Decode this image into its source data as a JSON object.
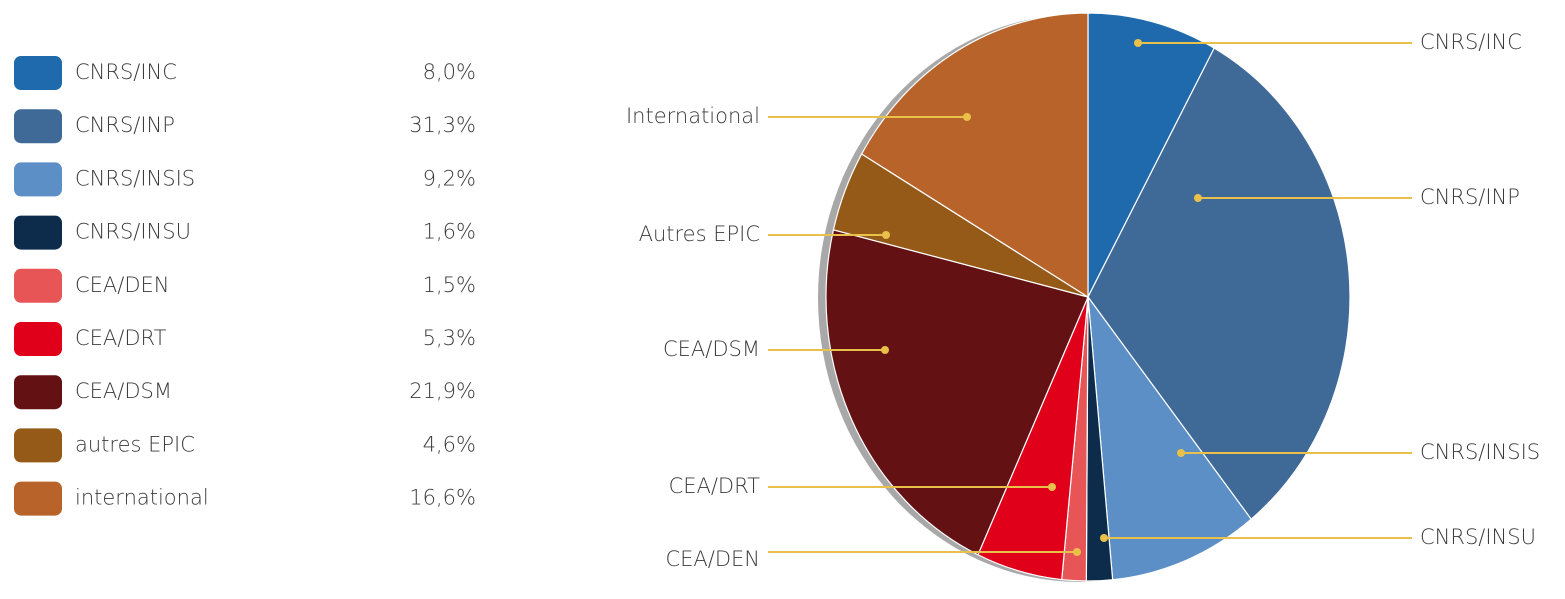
{
  "chart_data": {
    "type": "pie",
    "categories": [
      "CNRS/INC",
      "CNRS/INP",
      "CNRS/INSIS",
      "CNRS/INSU",
      "CEA/DEN",
      "CEA/DRT",
      "CEA/DSM",
      "autres EPIC",
      "international"
    ],
    "callout_labels": [
      "CNRS/INC",
      "CNRS/INP",
      "CNRS/INSIS",
      "CNRS/INSU",
      "CEA/DEN",
      "CEA/DRT",
      "CEA/DSM",
      "Autres EPIC",
      "International"
    ],
    "values": [
      8.0,
      31.3,
      9.2,
      1.6,
      1.5,
      5.3,
      21.9,
      4.6,
      16.6
    ],
    "value_labels": [
      "8,0%",
      "31,3%",
      "9,2%",
      "1,6%",
      "1,5%",
      "5,3%",
      "21,9%",
      "4,6%",
      "16,6%"
    ],
    "colors": [
      "#1f6aad",
      "#3f6a97",
      "#5b8fc6",
      "#0d2c4c",
      "#e85557",
      "#e0001a",
      "#641114",
      "#955a18",
      "#b7632a"
    ]
  }
}
